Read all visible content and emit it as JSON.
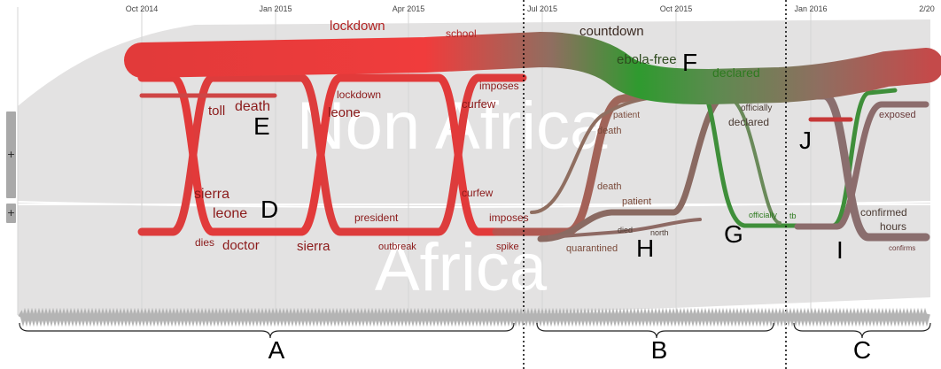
{
  "timeline": {
    "ticks": [
      "Oct 2014",
      "Jan 2015",
      "Apr 2015",
      "Jul 2015",
      "Oct 2015",
      "Jan 2016",
      "2/20"
    ]
  },
  "background": {
    "upper_label": "Non Africa",
    "lower_label": "Africa"
  },
  "periods": [
    "A",
    "B",
    "C"
  ],
  "annotations": [
    "D",
    "E",
    "F",
    "G",
    "H",
    "I",
    "J"
  ],
  "keywords": {
    "lockdown": "lockdown",
    "school": "school",
    "countdown": "countdown",
    "ebola_free": "ebola-free",
    "declared_1": "declared",
    "imposes_1": "imposes",
    "toll": "toll",
    "death_1": "death",
    "lockdown_2": "lockdown",
    "leone_1": "leone",
    "curfew_1": "curfew",
    "patient_1": "patient",
    "death_2": "death",
    "officially_1": "officially",
    "declared_2": "declared",
    "exposed": "exposed",
    "sierra_1": "sierra",
    "leone_2": "leone",
    "curfew_2": "curfew",
    "death_3": "death",
    "patient_2": "patient",
    "president": "president",
    "imposes_2": "imposes",
    "officially_2": "officially",
    "tb": "tb",
    "confirmed": "confirmed",
    "hours": "hours",
    "dies": "dies",
    "doctor": "doctor",
    "sierra_2": "sierra",
    "outbreak": "outbreak",
    "spike": "spike",
    "died": "died",
    "north": "north",
    "quarantined": "quarantined",
    "confirms": "confirms"
  },
  "controls": {
    "expand_upper": "+",
    "expand_lower": "+"
  },
  "colors": {
    "early_stream": "#e23a3a",
    "spike_stream": "#f03c3c",
    "transition_stream": "#8f6e60",
    "ebola_free_stream": "#2f9a2f",
    "background_band": "#e3e2e2",
    "keyword_text": "#8b1a1a",
    "green_text": "#2d7a1f"
  }
}
